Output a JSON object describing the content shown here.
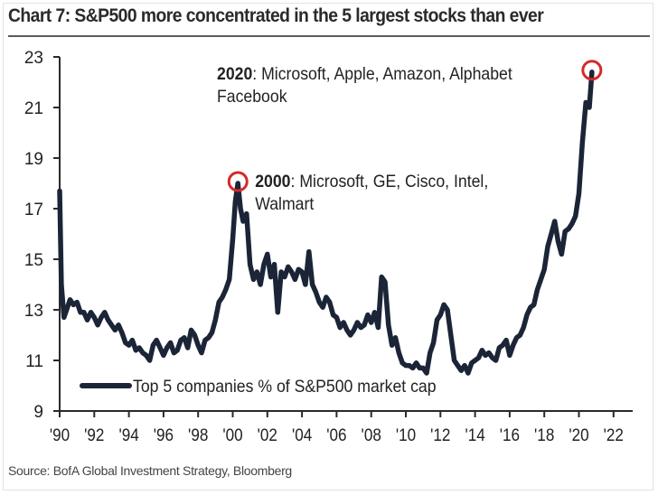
{
  "chart_data": {
    "type": "line",
    "title": "Chart 7: S&P500 more concentrated in the 5 largest stocks than ever",
    "xlabel": "",
    "ylabel": "",
    "xlim": [
      1990,
      2023.4
    ],
    "ylim": [
      9,
      23
    ],
    "grid": false,
    "legend_position": "bottom-left",
    "x_ticks": [
      1990,
      1992,
      1994,
      1996,
      1998,
      2000,
      2002,
      2004,
      2006,
      2008,
      2010,
      2012,
      2014,
      2016,
      2018,
      2020,
      2022
    ],
    "x_tick_labels": [
      "'90",
      "'92",
      "'94",
      "'96",
      "'98",
      "'00",
      "'02",
      "'04",
      "'06",
      "'08",
      "'10",
      "'12",
      "'14",
      "'16",
      "'18",
      "'20",
      "'22"
    ],
    "y_ticks": [
      9,
      11,
      13,
      15,
      17,
      19,
      21,
      23
    ],
    "y_tick_labels": [
      "9",
      "11",
      "13",
      "15",
      "17",
      "19",
      "21",
      "23"
    ],
    "series": [
      {
        "name": "Top 5 companies % of S&P500 market cap",
        "color": "#1c2537",
        "x": [
          1990.0,
          1990.1,
          1990.25,
          1990.4,
          1990.6,
          1990.8,
          1991.0,
          1991.2,
          1991.4,
          1991.6,
          1991.8,
          1992.0,
          1992.2,
          1992.4,
          1992.6,
          1992.8,
          1993.0,
          1993.2,
          1993.4,
          1993.6,
          1993.8,
          1994.0,
          1994.2,
          1994.4,
          1994.6,
          1994.8,
          1995.0,
          1995.2,
          1995.4,
          1995.6,
          1995.8,
          1996.0,
          1996.2,
          1996.4,
          1996.6,
          1996.8,
          1997.0,
          1997.2,
          1997.4,
          1997.6,
          1997.8,
          1998.0,
          1998.2,
          1998.4,
          1998.6,
          1998.8,
          1999.0,
          1999.2,
          1999.4,
          1999.6,
          1999.8,
          2000.0,
          2000.15,
          2000.3,
          2000.45,
          2000.6,
          2000.8,
          2001.0,
          2001.2,
          2001.4,
          2001.6,
          2001.8,
          2002.0,
          2002.2,
          2002.4,
          2002.6,
          2002.8,
          2003.0,
          2003.2,
          2003.4,
          2003.6,
          2003.8,
          2004.0,
          2004.2,
          2004.4,
          2004.6,
          2004.8,
          2005.0,
          2005.2,
          2005.4,
          2005.6,
          2005.8,
          2006.0,
          2006.2,
          2006.4,
          2006.6,
          2006.8,
          2007.0,
          2007.2,
          2007.4,
          2007.6,
          2007.8,
          2008.0,
          2008.2,
          2008.4,
          2008.6,
          2008.8,
          2009.0,
          2009.2,
          2009.4,
          2009.6,
          2009.8,
          2010.0,
          2010.2,
          2010.4,
          2010.6,
          2010.8,
          2011.0,
          2011.2,
          2011.4,
          2011.6,
          2011.8,
          2012.0,
          2012.2,
          2012.4,
          2012.6,
          2012.8,
          2013.0,
          2013.2,
          2013.4,
          2013.6,
          2013.8,
          2014.0,
          2014.2,
          2014.4,
          2014.6,
          2014.8,
          2015.0,
          2015.2,
          2015.4,
          2015.6,
          2015.8,
          2016.0,
          2016.2,
          2016.4,
          2016.6,
          2016.8,
          2017.0,
          2017.2,
          2017.4,
          2017.6,
          2017.8,
          2018.0,
          2018.2,
          2018.4,
          2018.6,
          2018.8,
          2019.0,
          2019.2,
          2019.4,
          2019.6,
          2019.8,
          2020.0,
          2020.2,
          2020.4,
          2020.6,
          2020.75
        ],
        "values": [
          17.7,
          14.0,
          12.7,
          13.0,
          13.4,
          13.2,
          13.3,
          12.9,
          12.9,
          12.6,
          12.9,
          12.7,
          12.4,
          12.7,
          12.9,
          12.6,
          12.4,
          12.2,
          12.4,
          12.1,
          11.7,
          11.6,
          11.8,
          11.4,
          11.5,
          11.3,
          11.2,
          11.0,
          11.6,
          11.8,
          11.5,
          11.2,
          11.5,
          11.7,
          11.3,
          11.4,
          11.8,
          11.9,
          11.5,
          12.2,
          12.0,
          11.6,
          11.3,
          11.8,
          11.9,
          12.1,
          12.6,
          13.3,
          13.5,
          13.8,
          14.2,
          15.8,
          17.3,
          18.0,
          17.0,
          16.5,
          16.8,
          14.8,
          14.2,
          14.5,
          14.0,
          14.8,
          15.2,
          14.3,
          14.8,
          12.9,
          14.5,
          14.3,
          14.7,
          14.5,
          14.2,
          14.6,
          14.5,
          14.0,
          15.3,
          14.0,
          13.7,
          13.3,
          13.1,
          13.5,
          13.3,
          12.8,
          12.7,
          12.3,
          12.5,
          12.2,
          12.0,
          12.2,
          12.5,
          12.3,
          12.4,
          12.8,
          12.5,
          12.9,
          12.3,
          14.3,
          14.1,
          12.4,
          11.6,
          11.9,
          11.3,
          10.9,
          10.8,
          10.8,
          10.7,
          10.9,
          10.7,
          10.7,
          10.5,
          11.3,
          11.7,
          12.6,
          12.8,
          13.2,
          13.0,
          12.0,
          11.0,
          10.8,
          10.6,
          10.8,
          10.5,
          10.9,
          11.0,
          11.1,
          11.4,
          11.2,
          11.3,
          11.1,
          11.0,
          11.5,
          11.6,
          11.8,
          11.2,
          11.6,
          11.9,
          12.0,
          12.3,
          12.8,
          13.1,
          13.2,
          13.8,
          14.2,
          14.6,
          15.5,
          16.0,
          16.5,
          15.7,
          15.2,
          16.1,
          16.2,
          16.4,
          16.7,
          17.6,
          19.6,
          21.2,
          21.0,
          22.4
        ]
      }
    ],
    "annotations": [
      {
        "bold": "2000",
        "text": ": Microsoft, GE, Cisco, Intel,",
        "line2": "Walmart",
        "x": 2000.3,
        "y": 18.0,
        "circle_color": "#d42a2a"
      },
      {
        "bold": "2020",
        "text": ": Microsoft, Apple, Amazon, Alphabet",
        "line2": "Facebook",
        "x": 2020.75,
        "y": 22.4,
        "circle_color": "#d42a2a"
      }
    ],
    "legend": [
      "Top 5 companies % of S&P500 market cap"
    ],
    "source": "Source: BofA Global Investment Strategy, Bloomberg"
  }
}
